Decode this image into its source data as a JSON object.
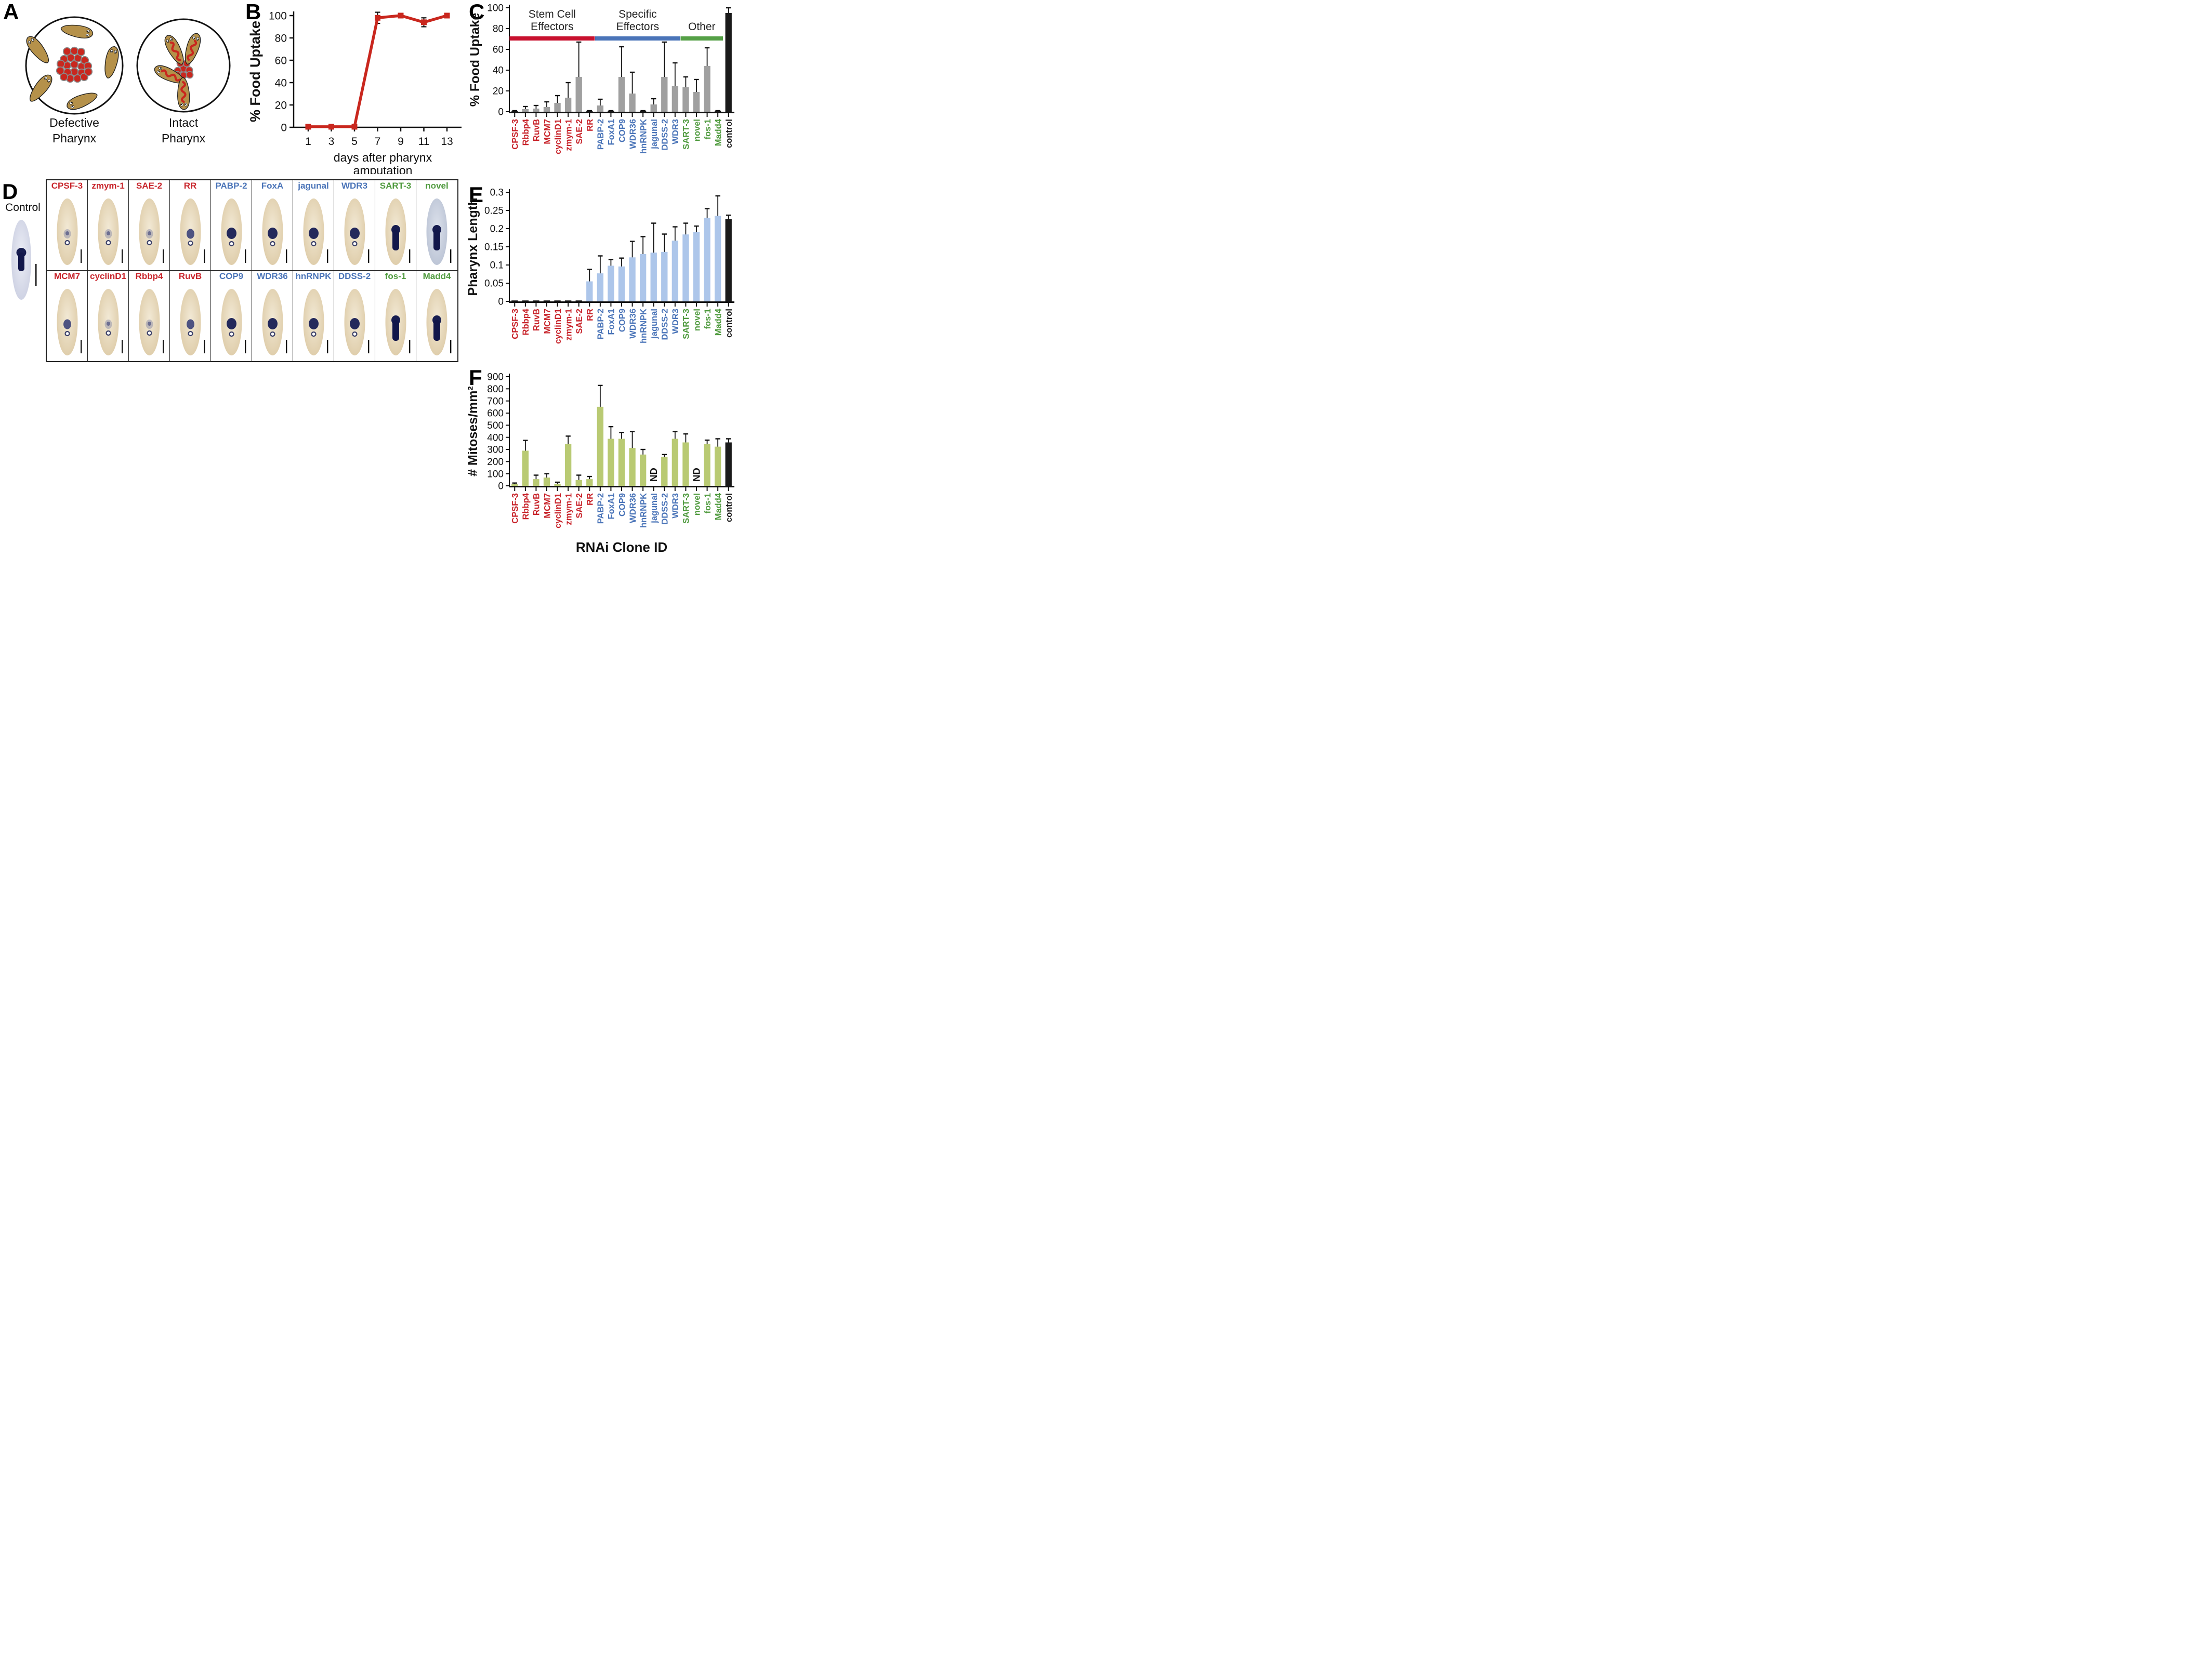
{
  "colors": {
    "red_label": "#c8242b",
    "blue_label": "#4a74b8",
    "green_label": "#4f9a3e",
    "black_label": "#1a1a1a",
    "gray_bar": "#a0a0a0",
    "light_blue_bar": "#adc6ea",
    "olive_bar": "#b9ca73",
    "control_bar": "#1a1a1a",
    "line_red": "#c9271e",
    "group_red": "#c8102e",
    "group_blue": "#4a74b8",
    "group_green": "#55a046"
  },
  "panel_letters": {
    "a": "A",
    "b": "B",
    "c": "C",
    "d": "D",
    "e": "E",
    "f": "F"
  },
  "panel_a": {
    "left_caption": [
      "Defective",
      "Pharynx"
    ],
    "right_caption": [
      "Intact",
      "Pharynx"
    ],
    "worm_color": "#b5914a",
    "food_color": "#c9271e",
    "outline": "#1a1a1a"
  },
  "panel_d": {
    "control_label": "Control",
    "rows": [
      [
        {
          "label": "CPSF-3",
          "color": "red",
          "stain": "faint",
          "tint": "cream"
        },
        {
          "label": "zmym-1",
          "color": "red",
          "stain": "faint",
          "tint": "cream"
        },
        {
          "label": "SAE-2",
          "color": "red",
          "stain": "faint",
          "tint": "cream"
        },
        {
          "label": "RR",
          "color": "red",
          "stain": "medium",
          "tint": "cream"
        },
        {
          "label": "PABP-2",
          "color": "blue",
          "stain": "dark",
          "tint": "cream"
        },
        {
          "label": "FoxA",
          "color": "blue",
          "stain": "dark",
          "tint": "cream"
        },
        {
          "label": "jagunal",
          "color": "blue",
          "stain": "dark",
          "tint": "cream"
        },
        {
          "label": "WDR3",
          "color": "blue",
          "stain": "dark",
          "tint": "cream"
        },
        {
          "label": "SART-3",
          "color": "green",
          "stain": "elongated",
          "tint": "cream"
        },
        {
          "label": "novel",
          "color": "green",
          "stain": "elongated",
          "tint": "bluish"
        }
      ],
      [
        {
          "label": "MCM7",
          "color": "red",
          "stain": "medium",
          "tint": "cream"
        },
        {
          "label": "cyclinD1",
          "color": "red",
          "stain": "faint",
          "tint": "cream"
        },
        {
          "label": "Rbbp4",
          "color": "red",
          "stain": "faint",
          "tint": "cream"
        },
        {
          "label": "RuvB",
          "color": "red",
          "stain": "medium",
          "tint": "cream"
        },
        {
          "label": "COP9",
          "color": "blue",
          "stain": "dark",
          "tint": "cream"
        },
        {
          "label": "WDR36",
          "color": "blue",
          "stain": "dark",
          "tint": "cream"
        },
        {
          "label": "hnRNPK",
          "color": "blue",
          "stain": "dark",
          "tint": "cream"
        },
        {
          "label": "DDSS-2",
          "color": "blue",
          "stain": "dark",
          "tint": "cream"
        },
        {
          "label": "fos-1",
          "color": "green",
          "stain": "elongated",
          "tint": "cream"
        },
        {
          "label": "Madd4",
          "color": "green",
          "stain": "elongated",
          "tint": "cream"
        }
      ]
    ]
  },
  "chart_data": [
    {
      "panel": "B",
      "type": "line",
      "x": [
        1,
        3,
        5,
        7,
        9,
        11,
        13
      ],
      "y": [
        0.5,
        0.5,
        0.5,
        98,
        100,
        94,
        100
      ],
      "yerr": [
        0,
        0,
        0,
        5,
        1,
        4,
        1
      ],
      "xlabel_lines": [
        "days after pharynx",
        "amputation"
      ],
      "ylabel": "% Food Uptake",
      "ylim": [
        0,
        100
      ],
      "yticks": [
        0,
        20,
        40,
        60,
        80,
        100
      ],
      "grid": false,
      "legend": "none"
    },
    {
      "panel": "C",
      "type": "bar",
      "ylabel": "% Food Uptake",
      "ylim": [
        0,
        100
      ],
      "yticks": [
        0,
        20,
        40,
        60,
        80,
        100
      ],
      "categories": [
        "CPSF-3",
        "Rbbp4",
        "RuvB",
        "MCM7",
        "cyclinD1",
        "zmym-1",
        "SAE-2",
        "RR",
        "PABP-2",
        "FoxA1",
        "COP9",
        "WDR36",
        "hnRNPK",
        "jagunal",
        "DDSS-2",
        "WDR3",
        "SART-3",
        "novel",
        "fos-1",
        "Madd4",
        "control"
      ],
      "label_colors": [
        "red",
        "red",
        "red",
        "red",
        "red",
        "red",
        "red",
        "red",
        "blue",
        "blue",
        "blue",
        "blue",
        "blue",
        "blue",
        "blue",
        "blue",
        "green",
        "green",
        "green",
        "green",
        "black"
      ],
      "values": [
        0.5,
        2.5,
        3,
        4.5,
        8.5,
        13.5,
        33.5,
        0.5,
        6,
        0.5,
        33.5,
        17.5,
        0.5,
        7,
        33.5,
        24.5,
        23.5,
        19,
        44,
        0.5,
        95
      ],
      "errors": [
        0.5,
        2.5,
        3,
        5,
        7,
        14.5,
        33.5,
        0.5,
        6,
        0.5,
        29,
        20.5,
        0.5,
        5.5,
        33.5,
        22.5,
        10,
        12,
        17.5,
        0.5,
        5
      ],
      "bar_colors": [
        "#1a1a1a",
        "#a0a0a0",
        "#a0a0a0",
        "#a0a0a0",
        "#a0a0a0",
        "#a0a0a0",
        "#a0a0a0",
        "#1a1a1a",
        "#a0a0a0",
        "#1a1a1a",
        "#a0a0a0",
        "#a0a0a0",
        "#1a1a1a",
        "#a0a0a0",
        "#a0a0a0",
        "#a0a0a0",
        "#a0a0a0",
        "#a0a0a0",
        "#a0a0a0",
        "#1a1a1a",
        "#1a1a1a"
      ],
      "groups": [
        {
          "title_lines": [
            "Stem Cell",
            "Effectors"
          ],
          "color": "#c8102e",
          "start": 0,
          "end": 7
        },
        {
          "title_lines": [
            "Specific",
            "Effectors"
          ],
          "color": "#4a74b8",
          "start": 8,
          "end": 15
        },
        {
          "title_lines": [
            "Other"
          ],
          "color": "#55a046",
          "start": 16,
          "end": 19
        }
      ]
    },
    {
      "panel": "E",
      "type": "bar",
      "ylabel": "Pharynx Length",
      "ylim": [
        0,
        0.3
      ],
      "yticks": [
        0,
        0.05,
        0.1,
        0.15,
        0.2,
        0.25,
        0.3
      ],
      "ytick_labels": [
        "0",
        "0.05",
        "0.1",
        "0.15",
        "0.2",
        "0.25",
        "0.3"
      ],
      "categories": [
        "CPSF-3",
        "Rbbp4",
        "RuvB",
        "MCM7",
        "cyclinD1",
        "zmym-1",
        "SAE-2",
        "RR",
        "PABP-2",
        "FoxA1",
        "COP9",
        "WDR36",
        "hnRNPK",
        "jagunal",
        "DDSS-2",
        "WDR3",
        "SART-3",
        "novel",
        "fos-1",
        "Madd4",
        "control"
      ],
      "label_colors": [
        "red",
        "red",
        "red",
        "red",
        "red",
        "red",
        "red",
        "red",
        "blue",
        "blue",
        "blue",
        "blue",
        "blue",
        "blue",
        "blue",
        "blue",
        "green",
        "green",
        "green",
        "green",
        "black"
      ],
      "values": [
        0.002,
        0.002,
        0.002,
        0.002,
        0.002,
        0.002,
        0.002,
        0.055,
        0.077,
        0.098,
        0.096,
        0.121,
        0.13,
        0.134,
        0.136,
        0.167,
        0.184,
        0.19,
        0.23,
        0.235,
        0.226
      ],
      "errors": [
        0,
        0,
        0,
        0,
        0,
        0,
        0,
        0.033,
        0.048,
        0.017,
        0.023,
        0.044,
        0.048,
        0.081,
        0.049,
        0.038,
        0.031,
        0.017,
        0.025,
        0.055,
        0.011
      ],
      "bar_colors": [
        "#1a1a1a",
        "#1a1a1a",
        "#1a1a1a",
        "#1a1a1a",
        "#1a1a1a",
        "#1a1a1a",
        "#1a1a1a",
        "#adc6ea",
        "#adc6ea",
        "#adc6ea",
        "#adc6ea",
        "#adc6ea",
        "#adc6ea",
        "#adc6ea",
        "#adc6ea",
        "#adc6ea",
        "#adc6ea",
        "#adc6ea",
        "#adc6ea",
        "#adc6ea",
        "#1a1a1a"
      ]
    },
    {
      "panel": "F",
      "type": "bar",
      "ylabel": "# Mitoses/mm²",
      "xlabel": "RNAi Clone ID",
      "ylim": [
        0,
        900
      ],
      "yticks": [
        0,
        100,
        200,
        300,
        400,
        500,
        600,
        700,
        800,
        900
      ],
      "categories": [
        "CPSF-3",
        "Rbbp4",
        "RuvB",
        "MCM7",
        "cyclinD1",
        "zmym-1",
        "SAE-2",
        "RR",
        "PABP-2",
        "FoxA1",
        "COP9",
        "WDR36",
        "hnRNPK",
        "jagunal",
        "DDSS-2",
        "WDR3",
        "SART-3",
        "novel",
        "fos-1",
        "Madd4",
        "control"
      ],
      "label_colors": [
        "red",
        "red",
        "red",
        "red",
        "red",
        "red",
        "red",
        "red",
        "blue",
        "blue",
        "blue",
        "blue",
        "blue",
        "blue",
        "blue",
        "blue",
        "green",
        "green",
        "green",
        "green",
        "black"
      ],
      "values": [
        15,
        290,
        55,
        68,
        15,
        345,
        48,
        55,
        652,
        388,
        388,
        312,
        258,
        null,
        240,
        388,
        358,
        null,
        347,
        323,
        358
      ],
      "errors": [
        8,
        85,
        33,
        32,
        15,
        65,
        40,
        22,
        176,
        100,
        52,
        135,
        42,
        0,
        18,
        59,
        70,
        0,
        30,
        65,
        30
      ],
      "bar_colors": [
        "#b9ca73",
        "#b9ca73",
        "#b9ca73",
        "#b9ca73",
        "#b9ca73",
        "#b9ca73",
        "#b9ca73",
        "#b9ca73",
        "#b9ca73",
        "#b9ca73",
        "#b9ca73",
        "#b9ca73",
        "#b9ca73",
        "#b9ca73",
        "#b9ca73",
        "#b9ca73",
        "#b9ca73",
        "#b9ca73",
        "#b9ca73",
        "#b9ca73",
        "#1a1a1a"
      ],
      "nd_label": "ND"
    }
  ]
}
